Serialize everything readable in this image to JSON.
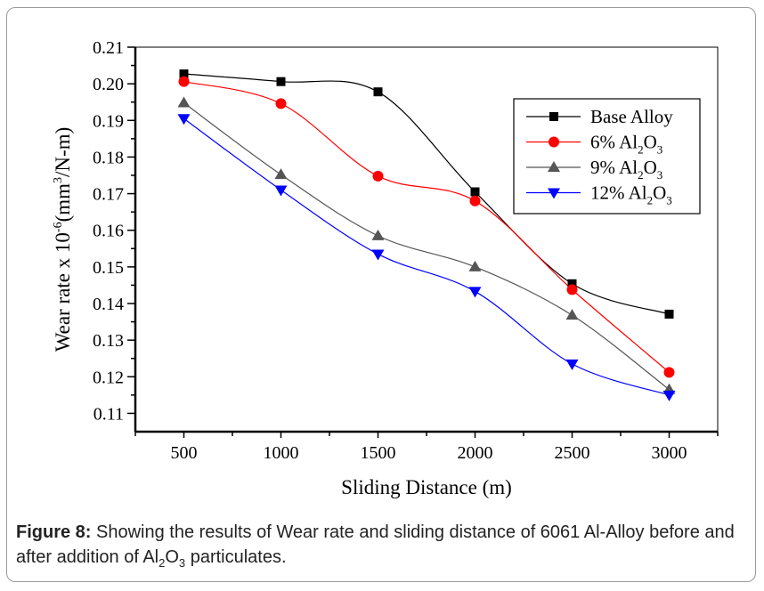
{
  "chart_data": {
    "type": "line",
    "title": "",
    "xlabel": "Sliding Distance (m)",
    "ylabel": "Wear rate x 10^-6 (mm^3/N-m)",
    "ylabel_parts": {
      "main": "Wear rate x 10",
      "exp": "-6",
      "unit_open": "(mm",
      "unit_exp": "3",
      "unit_close": "/N-m)"
    },
    "xlim": [
      250,
      3250
    ],
    "ylim": [
      0.105,
      0.21
    ],
    "x": [
      500,
      1000,
      1500,
      2000,
      2500,
      3000
    ],
    "x_ticks": [
      "500",
      "1000",
      "1500",
      "2000",
      "2500",
      "3000"
    ],
    "y_ticks": [
      "0.11",
      "0.12",
      "0.13",
      "0.14",
      "0.15",
      "0.16",
      "0.17",
      "0.18",
      "0.19",
      "0.20",
      "0.21"
    ],
    "grid": false,
    "legend_position": "top-right",
    "series": [
      {
        "name": "Base Alloy",
        "label_main": "Base Alloy",
        "label_sub": "",
        "label_after": "",
        "color": "#000000",
        "marker": "square",
        "values": [
          0.2027,
          0.2006,
          0.1978,
          0.1705,
          0.1454,
          0.1371
        ]
      },
      {
        "name": "6% Al2O3",
        "label_main": "6% Al",
        "label_sub": "2",
        "label_after": "O",
        "label_sub2": "3",
        "color": "#ff0000",
        "marker": "circle",
        "values": [
          0.2006,
          0.1946,
          0.1748,
          0.168,
          0.1438,
          0.1212
        ]
      },
      {
        "name": "9% Al2O3",
        "label_main": "9% Al",
        "label_sub": "2",
        "label_after": "O",
        "label_sub2": "3",
        "color": "#555555",
        "marker": "triangle-up",
        "values": [
          0.1948,
          0.1752,
          0.1585,
          0.15,
          0.1368,
          0.1165
        ]
      },
      {
        "name": "12% Al2O3",
        "label_main": "12% Al",
        "label_sub": "2",
        "label_after": "O",
        "label_sub2": "3",
        "color": "#0000ff",
        "marker": "triangle-down",
        "values": [
          0.1905,
          0.171,
          0.1535,
          0.1433,
          0.1235,
          0.115
        ]
      }
    ]
  },
  "caption": {
    "label": "Figure 8:",
    "text_before": " Showing the results of Wear rate and sliding distance of 6061 Al-Alloy before and after addition of Al",
    "sub1": "2",
    "mid": "O",
    "sub2": "3",
    "text_after": " particulates."
  }
}
